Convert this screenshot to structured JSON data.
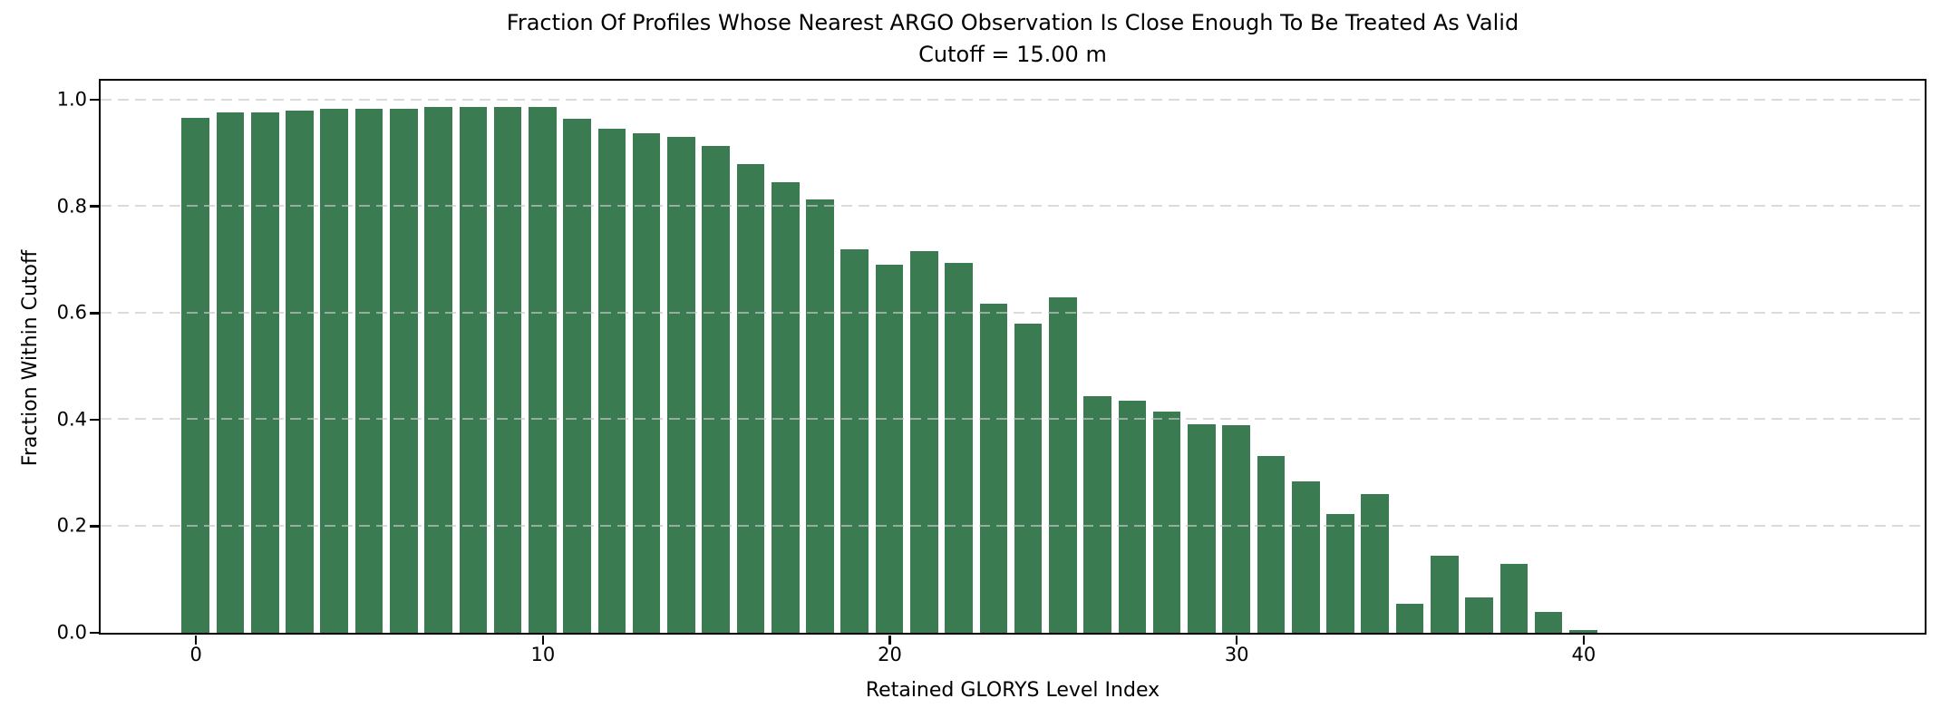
{
  "page": {
    "title_line1": "Fraction Of Profiles Whose Nearest ARGO Observation Is Close Enough To Be Treated As Valid",
    "title_line2": "Cutoff = 15.00 m"
  },
  "chart_data": {
    "type": "bar",
    "title": "Fraction Of Profiles Whose Nearest ARGO Observation Is Close Enough To Be Treated As Valid",
    "subtitle": "Cutoff = 15.00 m",
    "xlabel": "Retained GLORYS Level Index",
    "ylabel": "Fraction Within Cutoff",
    "x": [
      0,
      1,
      2,
      3,
      4,
      5,
      6,
      7,
      8,
      9,
      10,
      11,
      12,
      13,
      14,
      15,
      16,
      17,
      18,
      19,
      20,
      21,
      22,
      23,
      24,
      25,
      26,
      27,
      28,
      29,
      30,
      31,
      32,
      33,
      34,
      35,
      36,
      37,
      38,
      39,
      40,
      41,
      42,
      43,
      44,
      45,
      46,
      47
    ],
    "values": [
      0.965,
      0.976,
      0.975,
      0.979,
      0.983,
      0.983,
      0.983,
      0.985,
      0.985,
      0.985,
      0.985,
      0.963,
      0.945,
      0.936,
      0.929,
      0.912,
      0.878,
      0.845,
      0.813,
      0.718,
      0.69,
      0.715,
      0.693,
      0.616,
      0.58,
      0.629,
      0.444,
      0.435,
      0.414,
      0.391,
      0.388,
      0.331,
      0.284,
      0.222,
      0.26,
      0.054,
      0.143,
      0.065,
      0.129,
      0.039,
      0.004,
      0,
      0,
      0,
      0,
      0,
      0,
      0
    ],
    "bar_width_fraction": 0.8,
    "xlim": [
      -2.75,
      49.83
    ],
    "ylim": [
      0,
      1.036
    ],
    "xticks": [
      0,
      10,
      20,
      30,
      40
    ],
    "xtick_labels": [
      "0",
      "10",
      "20",
      "30",
      "40"
    ],
    "yticks": [
      0.0,
      0.2,
      0.4,
      0.6,
      0.8,
      1.0
    ],
    "ytick_labels": [
      "0.0",
      "0.2",
      "0.4",
      "0.6",
      "0.8",
      "1.0"
    ],
    "grid": "horizontal-dashed",
    "legend": "none",
    "colors": {
      "bar": "#3A7B52",
      "grid": "#c8c8c8",
      "axis": "#000000",
      "background": "#ffffff"
    }
  }
}
